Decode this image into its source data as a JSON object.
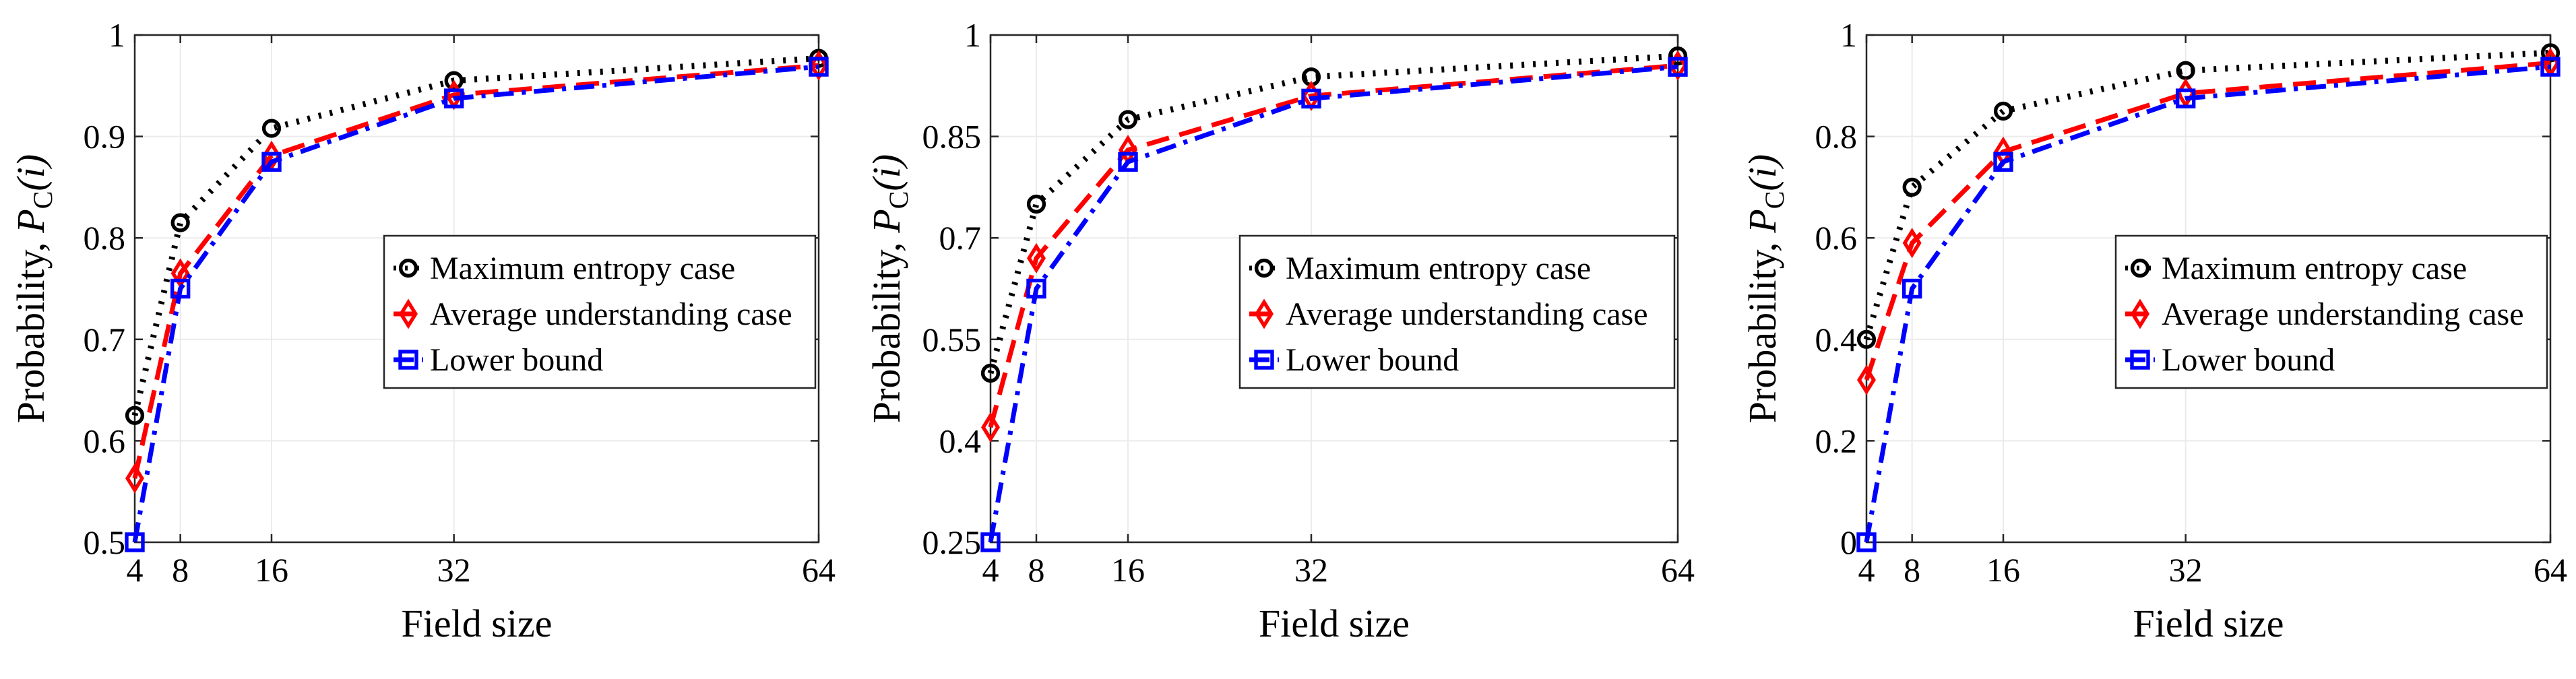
{
  "chart_data": [
    {
      "type": "line",
      "title": "",
      "xlabel": "Field size",
      "ylabel_prefix": "Probability,",
      "ylabel_symbol": "P",
      "ylabel_sub": "C",
      "ylabel_arg": "(i)",
      "x": [
        4,
        8,
        16,
        32,
        64
      ],
      "xticks": [
        4,
        8,
        16,
        32,
        64
      ],
      "xlim": [
        4,
        64
      ],
      "ylim": [
        0.5,
        1
      ],
      "yticks": [
        0.5,
        0.6,
        0.7,
        0.8,
        0.9,
        1
      ],
      "ytick_labels": [
        "0.5",
        "0.6",
        "0.7",
        "0.8",
        "0.9",
        "1"
      ],
      "grid": true,
      "legend_position": "center-right",
      "series": [
        {
          "name": "Maximum entropy case",
          "color": "#000000",
          "marker": "circle",
          "line": "dotted",
          "values": [
            0.625,
            0.815,
            0.908,
            0.955,
            0.977
          ]
        },
        {
          "name": "Average understanding case",
          "color": "#ff0000",
          "marker": "diamond",
          "line": "dashed",
          "values": [
            0.563,
            0.765,
            0.881,
            0.941,
            0.97
          ]
        },
        {
          "name": "Lower bound",
          "color": "#0000ff",
          "marker": "square",
          "line": "dashdot",
          "values": [
            0.5,
            0.75,
            0.875,
            0.9375,
            0.96875
          ]
        }
      ]
    },
    {
      "type": "line",
      "title": "",
      "xlabel": "Field size",
      "ylabel_prefix": "Probability,",
      "ylabel_symbol": "P",
      "ylabel_sub": "C",
      "ylabel_arg": "(i)",
      "x": [
        4,
        8,
        16,
        32,
        64
      ],
      "xticks": [
        4,
        8,
        16,
        32,
        64
      ],
      "xlim": [
        4,
        64
      ],
      "ylim": [
        0.25,
        1
      ],
      "yticks": [
        0.25,
        0.4,
        0.55,
        0.7,
        0.85,
        1
      ],
      "ytick_labels": [
        "0.25",
        "0.4",
        "0.55",
        "0.7",
        "0.85",
        "1"
      ],
      "grid": true,
      "legend_position": "center-right",
      "series": [
        {
          "name": "Maximum entropy case",
          "color": "#000000",
          "marker": "circle",
          "line": "dotted",
          "values": [
            0.5,
            0.75,
            0.875,
            0.938,
            0.969
          ]
        },
        {
          "name": "Average understanding case",
          "color": "#ff0000",
          "marker": "diamond",
          "line": "dashed",
          "values": [
            0.42,
            0.67,
            0.83,
            0.91,
            0.955
          ]
        },
        {
          "name": "Lower bound",
          "color": "#0000ff",
          "marker": "square",
          "line": "dashdot",
          "values": [
            0.25,
            0.625,
            0.8125,
            0.906,
            0.953
          ]
        }
      ]
    },
    {
      "type": "line",
      "title": "",
      "xlabel": "Field size",
      "ylabel_prefix": "Probability,",
      "ylabel_symbol": "P",
      "ylabel_sub": "C",
      "ylabel_arg": "(i)",
      "x": [
        4,
        8,
        16,
        32,
        64
      ],
      "xticks": [
        4,
        8,
        16,
        32,
        64
      ],
      "xlim": [
        4,
        64
      ],
      "ylim": [
        0,
        1
      ],
      "yticks": [
        0,
        0.2,
        0.4,
        0.6,
        0.8,
        1
      ],
      "ytick_labels": [
        "0",
        "0.2",
        "0.4",
        "0.6",
        "0.8",
        "1"
      ],
      "grid": true,
      "legend_position": "center-right",
      "series": [
        {
          "name": "Maximum entropy case",
          "color": "#000000",
          "marker": "circle",
          "line": "dotted",
          "values": [
            0.4,
            0.7,
            0.85,
            0.93,
            0.965
          ]
        },
        {
          "name": "Average understanding case",
          "color": "#ff0000",
          "marker": "diamond",
          "line": "dashed",
          "values": [
            0.32,
            0.59,
            0.77,
            0.885,
            0.945
          ]
        },
        {
          "name": "Lower bound",
          "color": "#0000ff",
          "marker": "square",
          "line": "dashdot",
          "values": [
            0.0,
            0.5,
            0.75,
            0.875,
            0.9375
          ]
        }
      ]
    }
  ]
}
